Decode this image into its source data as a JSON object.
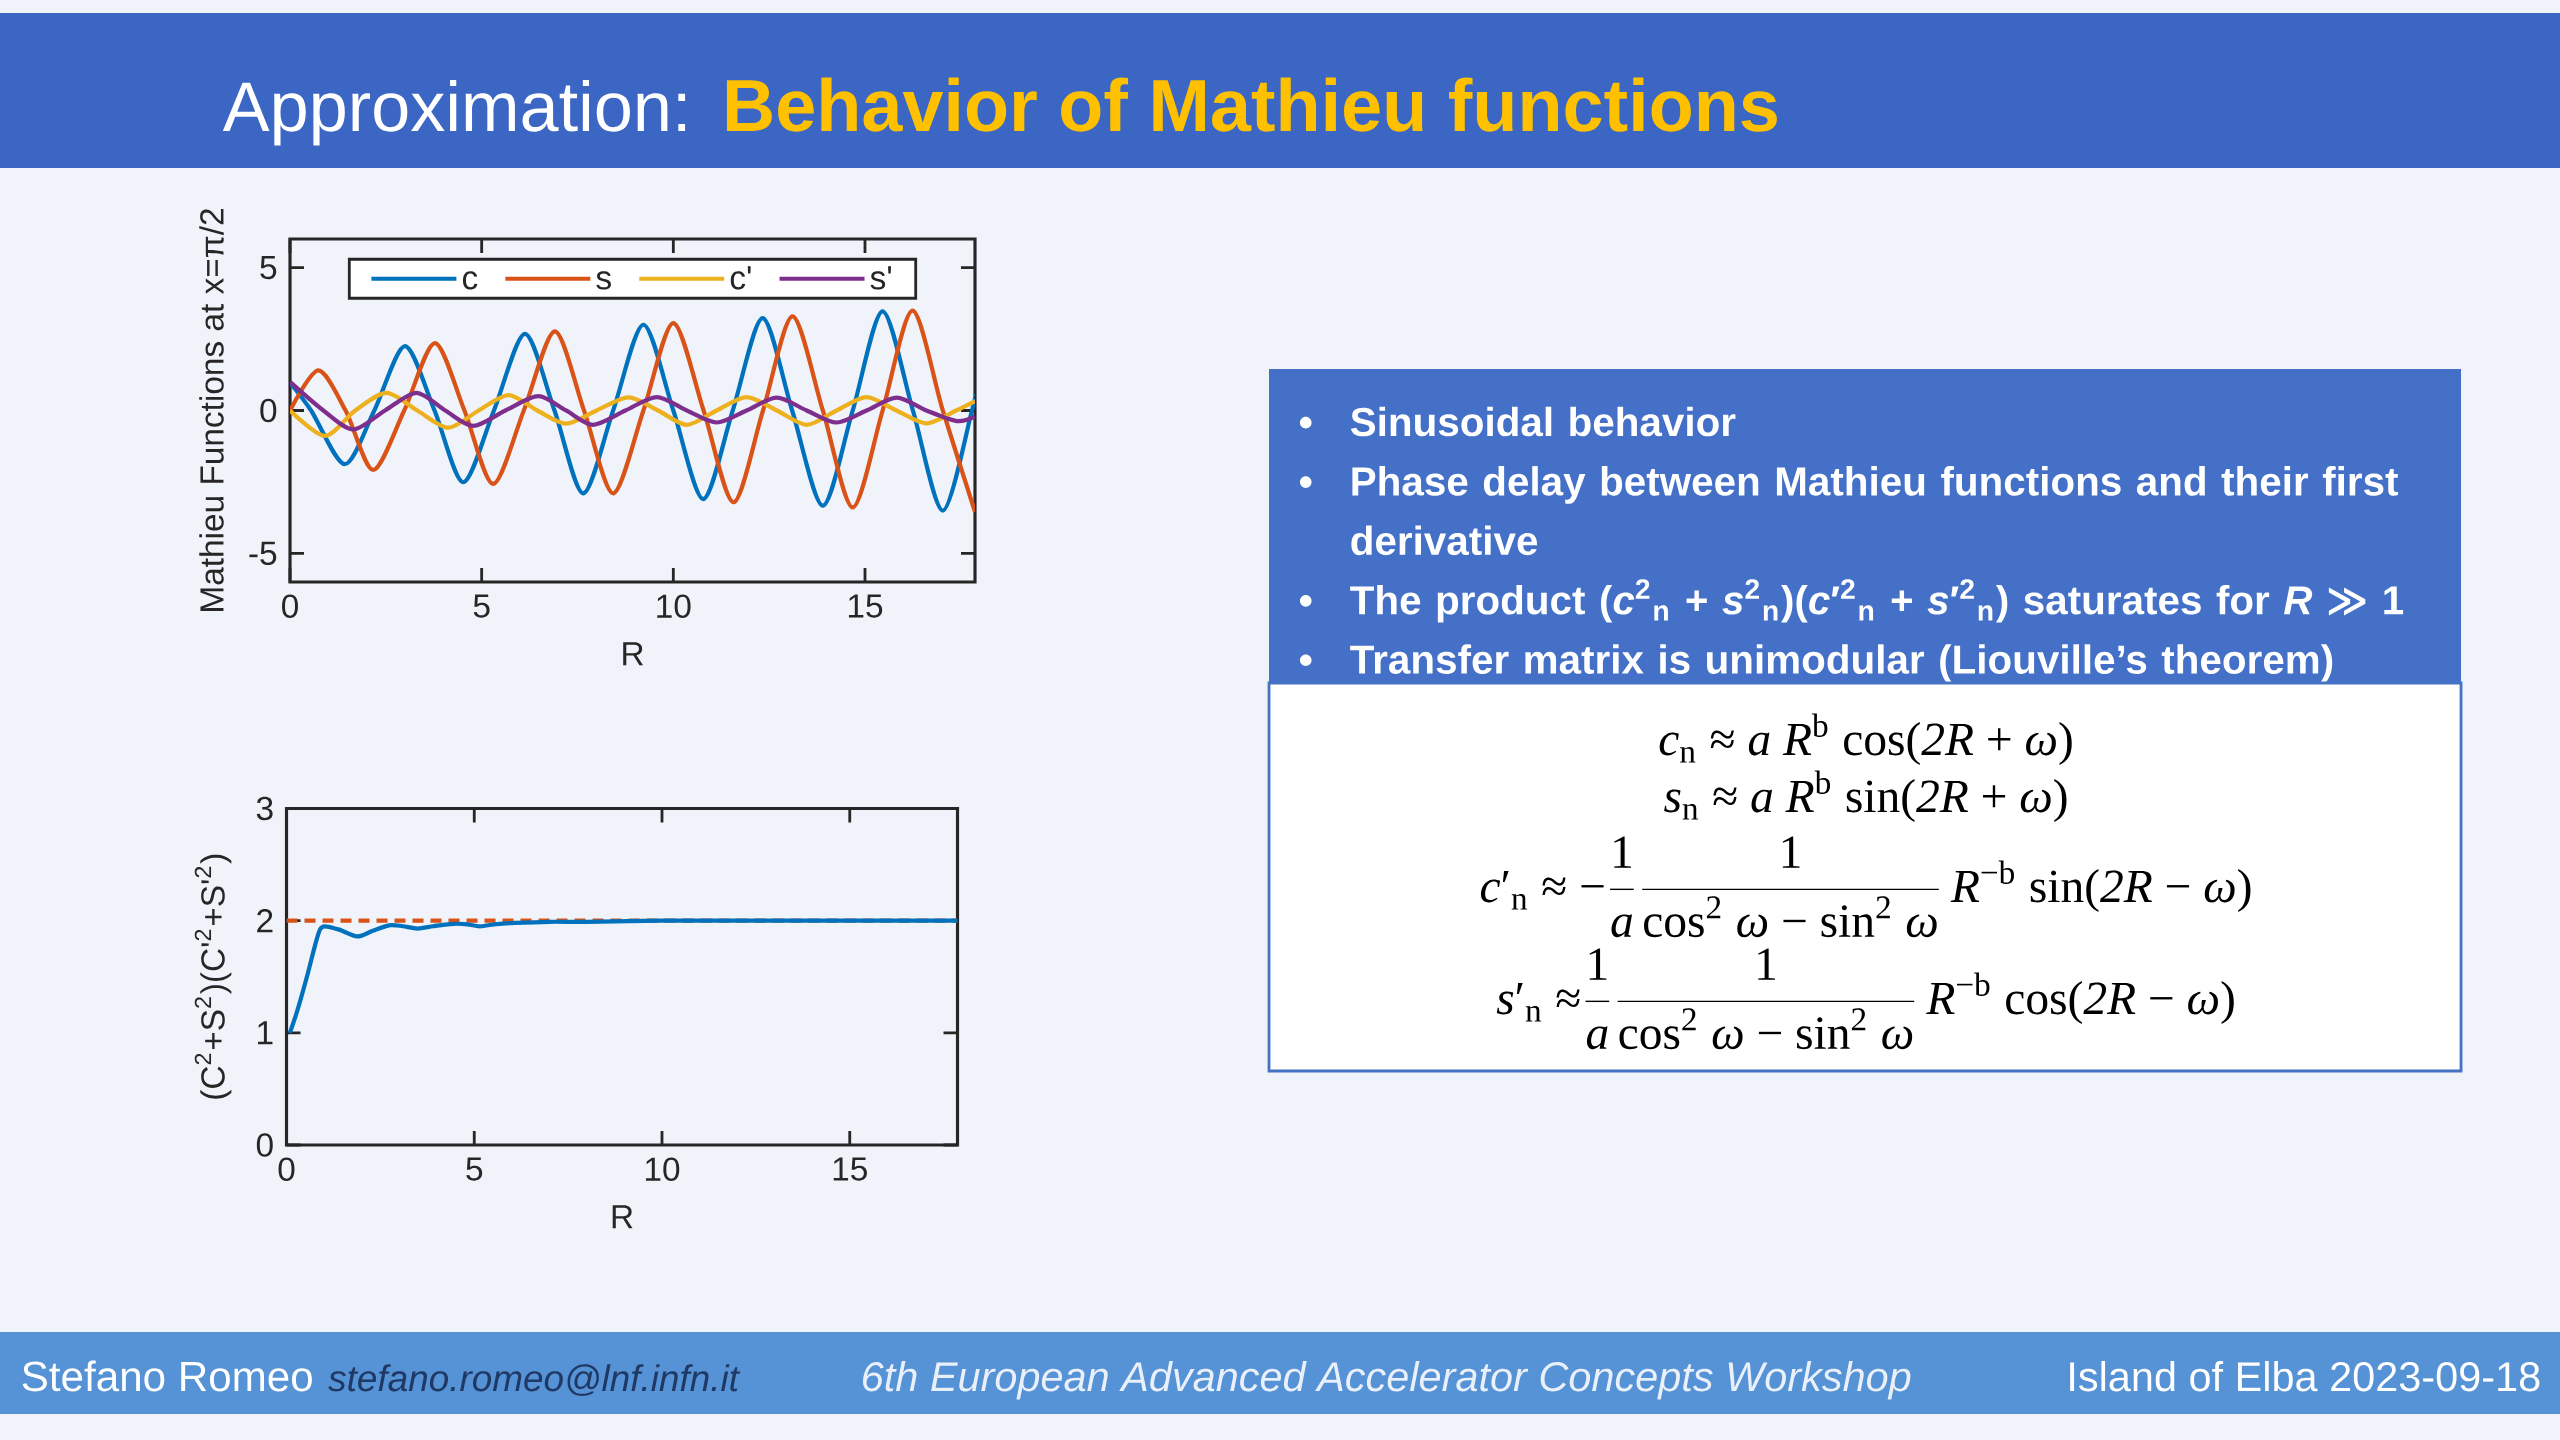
{
  "chart_data": [
    {
      "type": "other",
      "title": "Approximation:",
      "subtitle": "Behavior of Mathieu functions",
      "annotations": [
        "Stefano Romeo",
        "stefano.romeo@lnf.infn.it",
        "6th European Advanced Accelerator Concepts Workshop",
        "Island of Elba 2023-09-18"
      ]
    },
    {
      "type": "line",
      "xlabel": "R",
      "ylabel": "Mathieu Functions at x=π/2",
      "xlim": [
        0,
        17.87
      ],
      "ylim": [
        -6,
        6
      ],
      "xticks": [
        0,
        5,
        10,
        15
      ],
      "yticks": [
        -5,
        0,
        5
      ],
      "legend": "top",
      "series": [
        {
          "name": "c",
          "color": "#0072BD",
          "x": [
            0,
            0.55,
            1.43,
            2.2,
            3.0,
            3.77,
            4.52,
            5.32,
            6.13,
            6.9,
            7.65,
            8.43,
            9.22,
            10.0,
            10.78,
            11.55,
            12.33,
            13.1,
            13.9,
            14.68,
            15.46,
            16.25,
            17.03,
            17.79,
            17.87
          ],
          "values": [
            0.97,
            0,
            -1.88,
            0,
            2.25,
            0,
            -2.51,
            0,
            2.68,
            0,
            -2.9,
            0,
            3.0,
            0,
            -3.1,
            0,
            3.23,
            0,
            -3.33,
            0,
            3.47,
            0,
            -3.5,
            0,
            0.5
          ]
        },
        {
          "name": "s",
          "color": "#D95319",
          "x": [
            0,
            0.74,
            1.45,
            2.17,
            2.98,
            3.78,
            4.55,
            5.3,
            6.1,
            6.91,
            7.67,
            8.43,
            9.22,
            10.0,
            10.79,
            11.57,
            12.34,
            13.11,
            13.9,
            14.68,
            15.46,
            16.24,
            17.03,
            17.87
          ],
          "values": [
            0,
            1.4,
            0,
            -2.08,
            0,
            2.36,
            0,
            -2.57,
            0,
            2.77,
            0,
            -2.9,
            0,
            3.06,
            0,
            -3.21,
            0,
            3.29,
            0,
            -3.39,
            0,
            3.49,
            0,
            -3.55
          ]
        },
        {
          "name": "c'",
          "color": "#EDB120",
          "x": [
            0,
            0.91,
            1.7,
            2.52,
            3.32,
            4.13,
            4.92,
            5.7,
            6.45,
            7.2,
            8.0,
            8.83,
            9.6,
            10.35,
            11.13,
            11.91,
            12.7,
            13.48,
            14.26,
            15.04,
            15.82,
            16.6,
            17.38,
            17.87
          ],
          "values": [
            0,
            -0.89,
            0,
            0.62,
            0,
            -0.6,
            0,
            0.54,
            0,
            -0.46,
            0,
            0.46,
            0,
            -0.5,
            0,
            0.47,
            0,
            -0.5,
            0,
            0.47,
            0,
            -0.45,
            0,
            0.33
          ]
        },
        {
          "name": "s'",
          "color": "#7E2F8E",
          "x": [
            0,
            0.87,
            1.65,
            2.48,
            3.3,
            4.05,
            4.78,
            5.62,
            6.48,
            7.2,
            7.91,
            8.75,
            9.57,
            10.35,
            11.13,
            11.91,
            12.7,
            13.48,
            14.26,
            15.04,
            15.83,
            16.6,
            17.39,
            17.87
          ],
          "values": [
            1.0,
            0,
            -0.66,
            0,
            0.62,
            0,
            -0.54,
            0,
            0.5,
            0,
            -0.5,
            0,
            0.47,
            0,
            -0.42,
            0,
            0.45,
            0,
            -0.42,
            0,
            0.45,
            0,
            -0.37,
            -0.22
          ]
        }
      ]
    },
    {
      "type": "line",
      "xlabel": "R",
      "ylabel": "(C$^{2}$+S$^{2}$)(C'$^{2}$+S'$^{2}$)",
      "xlim": [
        0,
        17.87
      ],
      "ylim": [
        0,
        3
      ],
      "xticks": [
        0,
        5,
        10,
        15
      ],
      "yticks": [
        0,
        1,
        2,
        3
      ],
      "series": [
        {
          "color": "#0072BD",
          "x": [
            0.09,
            0.29,
            0.56,
            0.76,
            0.89,
            1.02,
            1.4,
            1.89,
            2.3,
            2.76,
            3.1,
            3.49,
            3.9,
            4.35,
            4.75,
            5.15,
            5.6,
            6.08,
            7,
            8,
            10,
            12,
            14,
            16,
            17.87
          ],
          "values": [
            1.0,
            1.2,
            1.52,
            1.78,
            1.92,
            1.95,
            1.92,
            1.86,
            1.91,
            1.96,
            1.95,
            1.93,
            1.95,
            1.97,
            1.97,
            1.95,
            1.97,
            1.98,
            1.99,
            1.99,
            2.0,
            2.0,
            2.0,
            2.0,
            2.0
          ]
        }
      ],
      "ref_lines": [
        {
          "axis": "y",
          "value": 2,
          "color": "#D95319",
          "line_style": "dashed"
        }
      ]
    },
    {
      "type": "other",
      "annotations": [
        "•",
        "Sinusoidal behavior",
        "•",
        "Phase delay between Mathieu functions and their first derivative",
        "•",
        "The product (*c*$^{2}$$_{n}$ + *s*$^{2}$$_{n}$)(*c*′$^{2}$$_{n}$ + *s*′$^{2}$$_{n}$) saturates for *R* ≫ 1",
        "•",
        "Transfer matrix is unimodular (Liouville’s theorem)"
      ]
    },
    {
      "type": "other",
      "annotations": [
        "*c*$_{n}$ ≈ *a R*$^{b}$ cos(*2R* + *ω*)",
        "*s*$_{n}$ ≈ *a R*$^{b}$ sin(*2R* + *ω*)",
        "*c*′$_{n}$ ≈ −",
        "1",
        "*a*",
        "1",
        "cos$^{2}$ *ω* − sin$^{2}$ *ω*",
        "*R*$^{−b}$ sin(*2R* − *ω*)",
        "*s*′$_{n}$ ≈",
        "1",
        "*a*",
        "1",
        "cos$^{2}$ *ω* − sin$^{2}$ *ω*",
        "*R*$^{−b}$ cos(*2R* − *ω*)"
      ]
    }
  ]
}
